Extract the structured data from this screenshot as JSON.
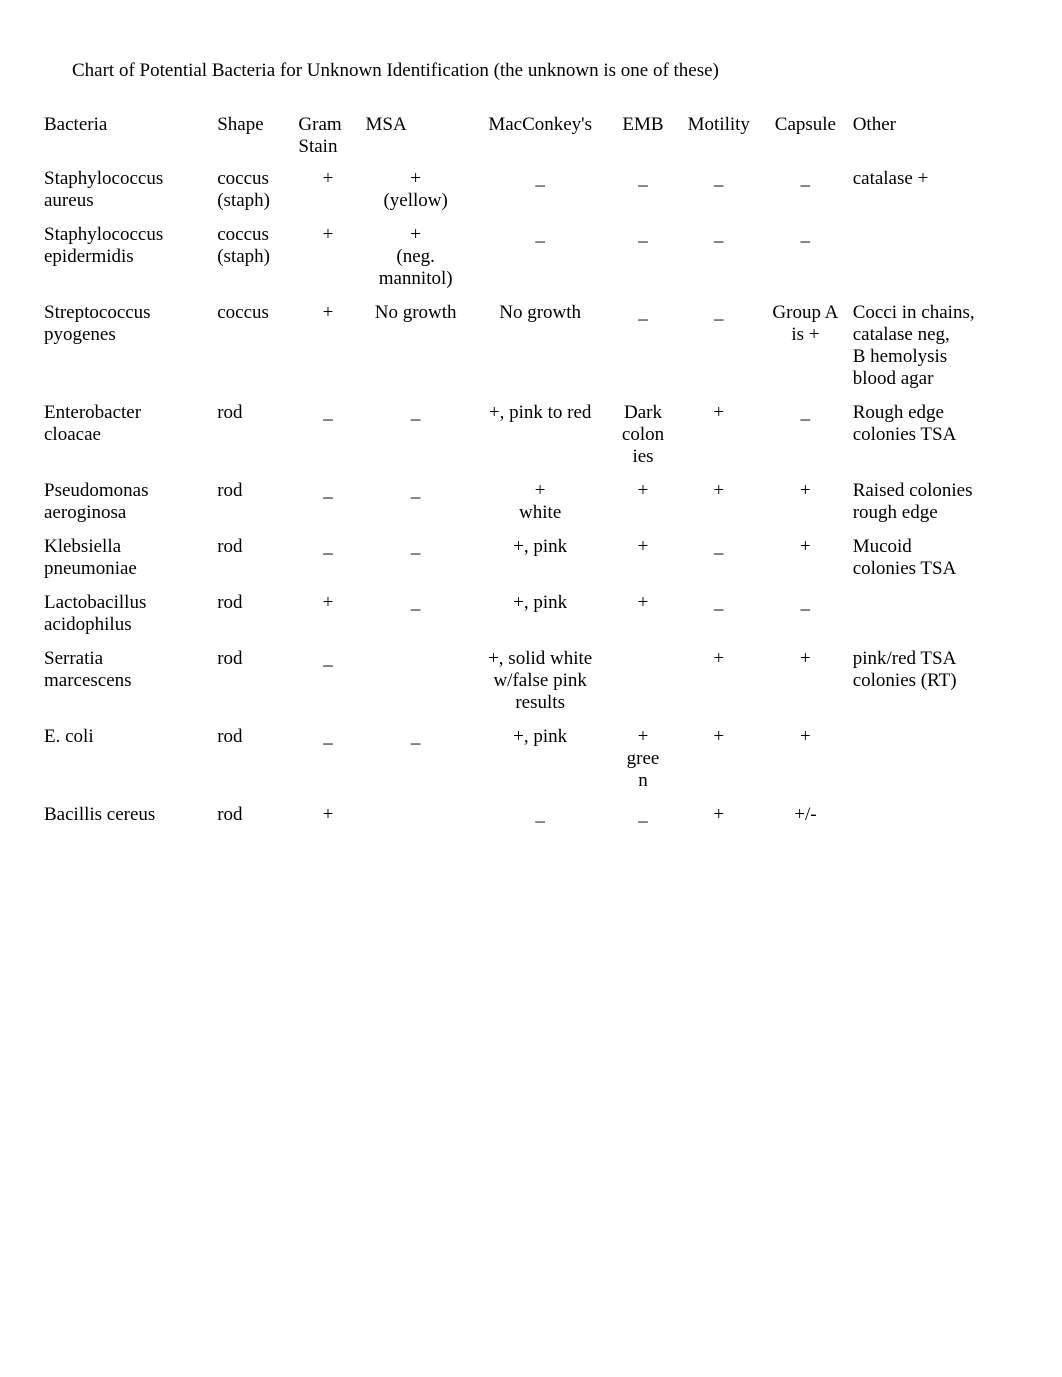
{
  "title": "Chart of Potential Bacteria for Unknown Identification (the unknown is one of these)",
  "headers": {
    "bacteria": "Bacteria",
    "shape": "Shape",
    "gram": "Gram Stain",
    "msa": "MSA",
    "mac": "MacConkey's",
    "emb": "EMB",
    "motility": "Motility",
    "capsule": "Capsule",
    "other": "Other"
  },
  "rows": [
    {
      "bacteria": "Staphylococcus aureus",
      "shape": "coccus (staph)",
      "gram": "+",
      "msa": "+ (yellow)",
      "mac": "_",
      "emb": "_",
      "motility": "_",
      "capsule": "_",
      "other": "catalase +"
    },
    {
      "bacteria": "Staphylococcus epidermidis",
      "shape": "coccus (staph)",
      "gram": "+",
      "msa": "+ (neg. mannitol)",
      "mac": "_",
      "emb": "_",
      "motility": "_",
      "capsule": "_",
      "other": ""
    },
    {
      "bacteria": "Streptococcus pyogenes",
      "shape": "coccus",
      "gram": "+",
      "msa": "No growth",
      "mac": "No growth",
      "emb": "_",
      "motility": "_",
      "capsule": "Group A is +",
      "other": "Cocci in chains, catalase neg, B hemolysis blood agar"
    },
    {
      "bacteria": "Enterobacter cloacae",
      "shape": "rod",
      "gram": "_",
      "msa": "_",
      "mac": "+, pink to red",
      "emb": "Dark colonies",
      "motility": "+",
      "capsule": "_",
      "other": "Rough edge colonies TSA"
    },
    {
      "bacteria": "Pseudomonas aeroginosa",
      "shape": "rod",
      "gram": "_",
      "msa": "_",
      "mac": "+ white",
      "emb": "+",
      "motility": "+",
      "capsule": "+",
      "other": "Raised colonies rough edge"
    },
    {
      "bacteria": "Klebsiella pneumoniae",
      "shape": "rod",
      "gram": "_",
      "msa": "_",
      "mac": "+,  pink",
      "emb": "+",
      "motility": "_",
      "capsule": "+",
      "other": "Mucoid colonies TSA"
    },
    {
      "bacteria": "Lactobacillus acidophilus",
      "shape": "rod",
      "gram": "+",
      "msa": "_",
      "mac": "+,  pink",
      "emb": "+",
      "motility": "_",
      "capsule": "_",
      "other": ""
    },
    {
      "bacteria": "Serratia marcescens",
      "shape": "rod",
      "gram": "_",
      "msa": "",
      "mac": "+, solid white w/false pink results",
      "emb": "",
      "motility": "+",
      "capsule": "+",
      "other": "pink/red TSA colonies (RT)"
    },
    {
      "bacteria": "E.  coli",
      "shape": "rod",
      "gram": "_",
      "msa": "_",
      "mac": "+,  pink",
      "emb": "+ green",
      "motility": "+",
      "capsule": "+",
      "other": ""
    },
    {
      "bacteria": "Bacillis cereus",
      "shape": "rod",
      "gram": "+",
      "msa": "",
      "mac": "_",
      "emb": "_",
      "motility": "+",
      "capsule": "+/-",
      "other": ""
    }
  ]
}
